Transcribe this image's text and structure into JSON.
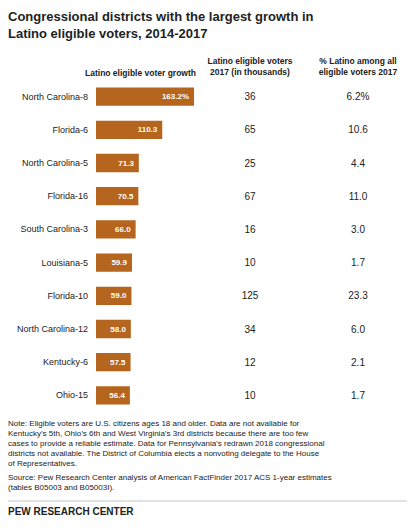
{
  "chart_data": {
    "type": "bar",
    "orientation": "horizontal",
    "title": "Congressional districts with the largest growth in\nLatino eligible voters, 2014-2017",
    "xlabel": "Latino eligible voter growth",
    "categories": [
      "North Carolina-8",
      "Florida-6",
      "North Carolina-5",
      "Florida-16",
      "South Carolina-3",
      "Louisiana-5",
      "Florida-10",
      "North Carolina-12",
      "Kentucky-6",
      "Ohio-15"
    ],
    "values": [
      163.2,
      110.3,
      71.3,
      70.5,
      66.0,
      59.9,
      59.0,
      58.0,
      57.5,
      56.4
    ],
    "value_labels": [
      "163.2%",
      "110.3",
      "71.3",
      "70.5",
      "66.0",
      "59.9",
      "59.0",
      "58.0",
      "57.5",
      "56.4"
    ],
    "color": "#b5651d",
    "data_labels": true,
    "xlim": [
      0,
      166.464
    ],
    "grid": false,
    "tick_labels": "y",
    "columns": [
      {
        "header": "Latino eligible voters\n2017 (in thousands)",
        "labels": [
          "36",
          "65",
          "25",
          "67",
          "16",
          "10",
          "125",
          "34",
          "12",
          "10"
        ]
      },
      {
        "header": "% Latino among all\neligible voters 2017",
        "labels": [
          "6.2%",
          "10.6",
          "4.4",
          "11.0",
          "3.0",
          "1.7",
          "23.3",
          "6.0",
          "2.1",
          "1.7"
        ]
      }
    ],
    "annotations": [
      "Note: Eligible voters are U.S. citizens ages 18 and older. Data are not available for\nKentucky’s 5th, Ohio’s 6th and West Virginia’s 3rd districts because there are too few\ncases to provide a reliable estimate. Data for Pennsylvania’s redrawn 2018 congressional\ndistricts not available. The District of Columbia elects a nonvoting delegate to the House\nof Representatives.",
      "Source: Pew Research Center analysis of American FactFinder 2017 ACS 1-year estimates\n(tables B05003 and B05003I).",
      "PEW RESEARCH CENTER"
    ]
  }
}
